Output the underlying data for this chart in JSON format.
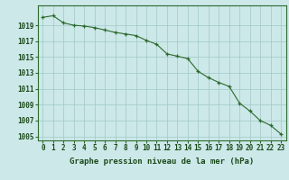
{
  "x": [
    0,
    1,
    2,
    3,
    4,
    5,
    6,
    7,
    8,
    9,
    10,
    11,
    12,
    13,
    14,
    15,
    16,
    17,
    18,
    19,
    20,
    21,
    22,
    23
  ],
  "y": [
    1020.0,
    1020.2,
    1019.3,
    1019.0,
    1018.9,
    1018.7,
    1018.4,
    1018.1,
    1017.9,
    1017.7,
    1017.1,
    1016.6,
    1015.4,
    1015.1,
    1014.8,
    1013.2,
    1012.4,
    1011.8,
    1011.3,
    1009.2,
    1008.2,
    1007.0,
    1006.4,
    1005.3
  ],
  "line_color": "#2d6a2d",
  "marker": "+",
  "bg_color": "#cce8e8",
  "grid_color": "#a0c8c8",
  "xlabel": "Graphe pression niveau de la mer (hPa)",
  "xlabel_fontsize": 6.5,
  "ylabel_ticks": [
    1005,
    1007,
    1009,
    1011,
    1013,
    1015,
    1017,
    1019
  ],
  "xlim": [
    -0.5,
    23.5
  ],
  "ylim": [
    1004.5,
    1021.5
  ],
  "tick_fontsize": 5.5,
  "title_color": "#1a4a1a"
}
